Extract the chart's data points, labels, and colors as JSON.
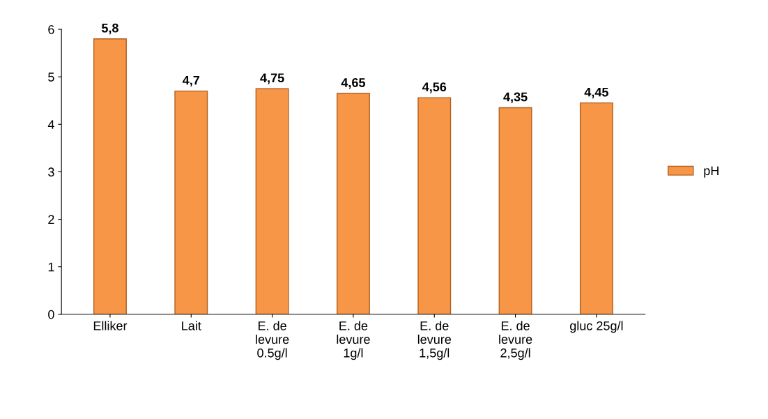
{
  "chart_data": {
    "type": "bar",
    "categories": [
      "Elliker",
      "Lait",
      "E. de\nlevure\n0.5g/l",
      "E. de\nlevure\n1g/l",
      "E. de\nlevure\n1,5g/l",
      "E. de\nlevure\n2,5g/l",
      "gluc 25g/l"
    ],
    "series": [
      {
        "name": "pH",
        "color": "#f79646",
        "values": [
          5.8,
          4.7,
          4.75,
          4.65,
          4.56,
          4.35,
          4.45
        ],
        "value_labels": [
          "5,8",
          "4,7",
          "4,75",
          "4,65",
          "4,56",
          "4,35",
          "4,45"
        ]
      }
    ],
    "ylim": [
      0,
      6
    ],
    "yticks": [
      0,
      1,
      2,
      3,
      4,
      5,
      6
    ],
    "grid": false,
    "legend": "right"
  }
}
